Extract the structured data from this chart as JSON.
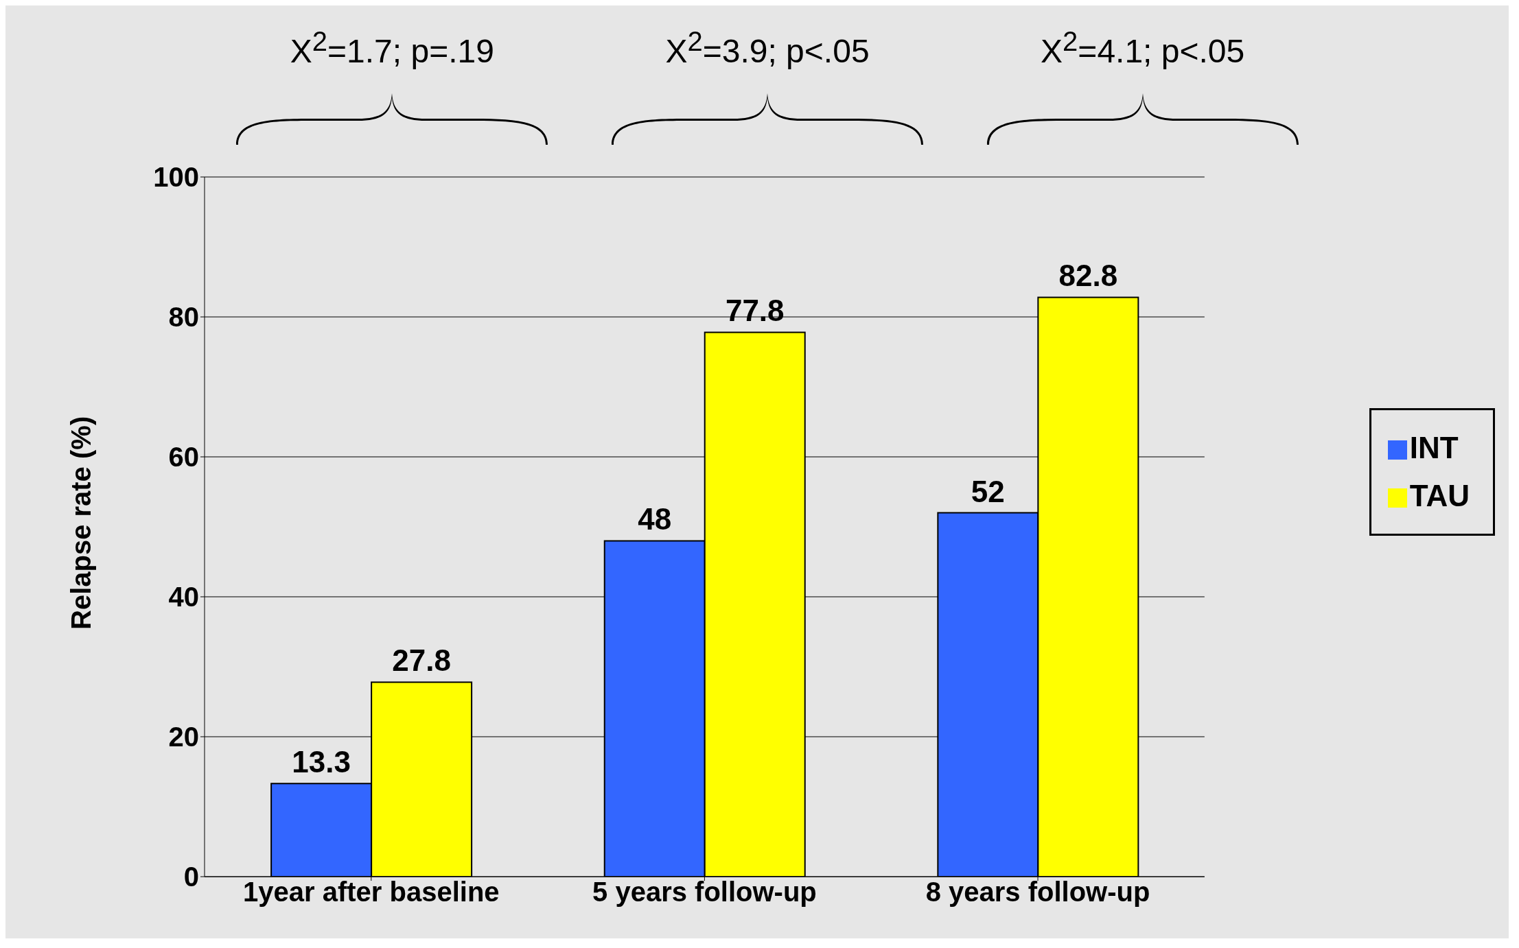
{
  "chart_data": {
    "type": "bar",
    "ylabel": "Relapse rate (%)",
    "categories": [
      "1year after baseline",
      "5 years follow-up",
      "8 years follow-up"
    ],
    "series": [
      {
        "name": "INT",
        "color": "#3366ff",
        "values": [
          13.3,
          48,
          52
        ]
      },
      {
        "name": "TAU",
        "color": "#ffff00",
        "values": [
          27.8,
          77.8,
          82.8
        ]
      }
    ],
    "ylim": [
      0,
      100
    ],
    "yticks": [
      0,
      20,
      40,
      60,
      80,
      100
    ],
    "grid": "y",
    "legend": "right",
    "data_labels": true,
    "annotations": [
      "X$^{2}$=1.7; p=.19",
      "X$^{2}$=3.9; p<.05",
      "X$^{2}$=4.1; p<.05"
    ]
  }
}
